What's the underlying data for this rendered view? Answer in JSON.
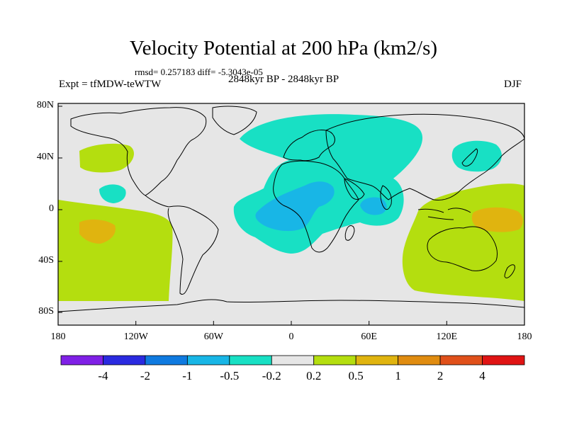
{
  "title": "Velocity Potential at 200 hPa (km2/s)",
  "stats": "rmsd= 0.257183 diff= -5.3043e-05",
  "left_label": "Expt = tfMDW-teWTW",
  "center_label": "2848kyr BP - 2848kyr BP",
  "right_label": "DJF",
  "lat_labels": [
    "80N",
    "40N",
    "0",
    "40S",
    "80S"
  ],
  "lon_labels": [
    "180",
    "120W",
    "60W",
    "0",
    "60E",
    "120E",
    "180"
  ],
  "colorbar": {
    "colors": [
      "#7f20e6",
      "#2a2ae0",
      "#0f7ae0",
      "#18b6e6",
      "#18e0c4",
      "#e6e6e6",
      "#b4de0f",
      "#e0b40f",
      "#e08c10",
      "#e0501a",
      "#e01414"
    ],
    "labels": [
      "-4",
      "-2",
      "-1",
      "-0.5",
      "-0.2",
      "0.2",
      "0.5",
      "1",
      "2",
      "4"
    ]
  },
  "map_colors": {
    "background": "#e6e6e6",
    "neg_weak": "#18e0c4",
    "neg_moderate": "#18b6e6",
    "pos_weak": "#b4de0f",
    "pos_moderate": "#e0b40f"
  }
}
